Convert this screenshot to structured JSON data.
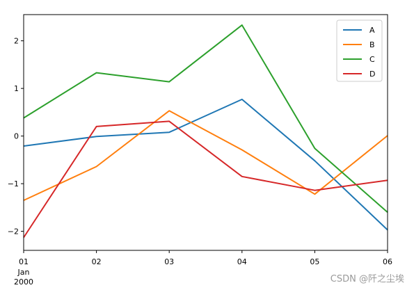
{
  "chart_data": {
    "type": "line",
    "x": [
      "01",
      "02",
      "03",
      "04",
      "05",
      "06"
    ],
    "x_sublabels": [
      "Jan",
      "2000"
    ],
    "ylim": [
      -2.4,
      2.55
    ],
    "yticks": [
      -2,
      -1,
      0,
      1,
      2
    ],
    "ytick_labels": [
      "−2",
      "−1",
      "0",
      "1",
      "2"
    ],
    "grid": false,
    "legend_position": "top-right",
    "series": [
      {
        "name": "A",
        "color": "#1f77b4",
        "values": [
          -0.21,
          -0.01,
          0.08,
          0.77,
          -0.52,
          -1.97
        ]
      },
      {
        "name": "B",
        "color": "#ff7f0e",
        "values": [
          -1.35,
          -0.64,
          0.53,
          -0.29,
          -1.22,
          0.01
        ]
      },
      {
        "name": "C",
        "color": "#2ca02c",
        "values": [
          0.38,
          1.33,
          1.14,
          2.33,
          -0.26,
          -1.6
        ]
      },
      {
        "name": "D",
        "color": "#d62728",
        "values": [
          -2.13,
          0.2,
          0.31,
          -0.85,
          -1.14,
          -0.93
        ]
      }
    ]
  },
  "watermark": "CSDN @阡之尘埃"
}
